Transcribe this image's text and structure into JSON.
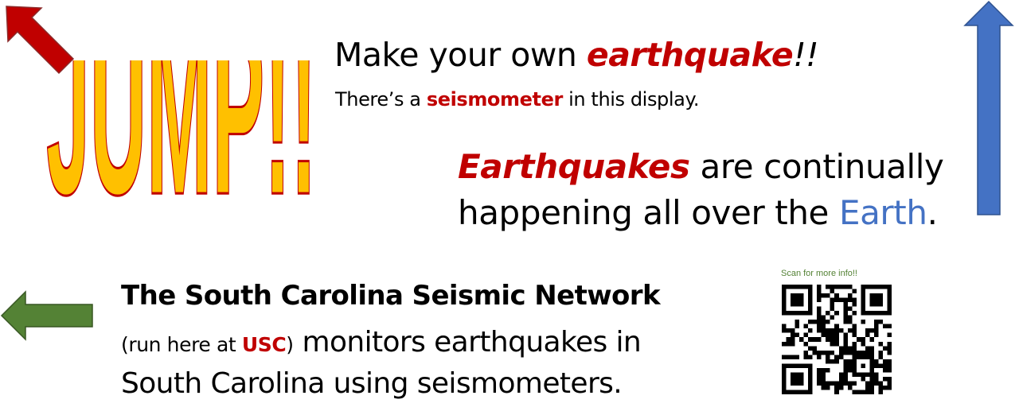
{
  "jump_text": "JUMP!!",
  "headline": {
    "prefix": "Make your own ",
    "emphasis": "earthquake",
    "suffix": "!!"
  },
  "subline": {
    "prefix": "There’s a ",
    "emphasis": "seismometer",
    "suffix": " in this display."
  },
  "quake_statement": {
    "emphasis": "Earthquakes",
    "line1_rest": " are continually",
    "line2_prefix": "happening all over the ",
    "earth": "Earth",
    "period": "."
  },
  "network": {
    "title": "The South Carolina Seismic Network",
    "paren_open": "(run here at ",
    "usc": "USC",
    "paren_close": ")",
    "line2_rest": " monitors earthquakes in",
    "line3": "South Carolina using seismometers."
  },
  "qr": {
    "caption": "Scan for more info!!",
    "icon": "qr-code-icon"
  },
  "arrows": {
    "red": "arrow-up-left-icon",
    "blue": "arrow-up-icon",
    "green": "arrow-left-icon"
  },
  "colors": {
    "accent_red": "#C00000",
    "earth_blue": "#4472C4",
    "jump_fill": "#FFC000",
    "jump_outline": "#C00000",
    "arrow_red": "#C00000",
    "arrow_blue": "#4472C4",
    "arrow_green": "#548235",
    "qr_caption_green": "#548235"
  }
}
